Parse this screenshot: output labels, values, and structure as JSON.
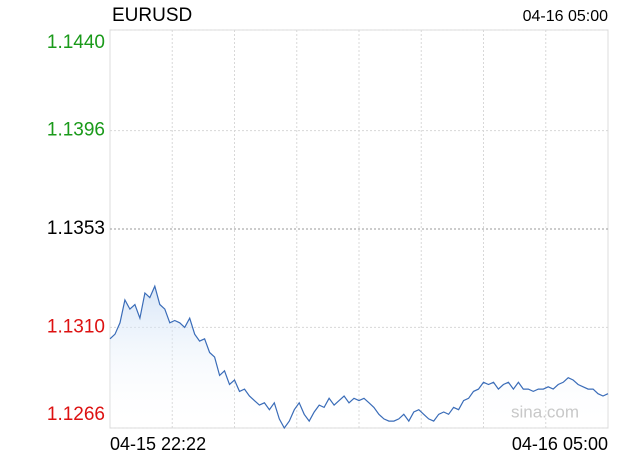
{
  "chart_data": {
    "type": "line",
    "title": "EURUSD",
    "time": "04-16 05:00",
    "watermark": "sina.com",
    "categories": [
      "04-15 22:22",
      null,
      null,
      null,
      null,
      null,
      null,
      null,
      null,
      null,
      null,
      null,
      null,
      null,
      null,
      null,
      null,
      null,
      null,
      null,
      null,
      null,
      null,
      null,
      null,
      null,
      null,
      null,
      null,
      null,
      null,
      null,
      null,
      null,
      null,
      null,
      null,
      null,
      null,
      null,
      null,
      null,
      null,
      null,
      null,
      null,
      null,
      null,
      null,
      null,
      null,
      null,
      null,
      null,
      null,
      null,
      null,
      null,
      null,
      null,
      null,
      null,
      null,
      null,
      null,
      null,
      null,
      null,
      null,
      null,
      null,
      null,
      null,
      null,
      null,
      null,
      null,
      null,
      null,
      null,
      null,
      null,
      null,
      null,
      null,
      null,
      null,
      null,
      null,
      null,
      null,
      null,
      null,
      null,
      null,
      null,
      null,
      null,
      null,
      null,
      "04-16 05:00"
    ],
    "series": [
      {
        "name": "EURUSD",
        "color": "#3a6cb8",
        "values": [
          1.1305,
          1.1307,
          1.1312,
          1.1322,
          1.1318,
          1.132,
          1.1314,
          1.1325,
          1.1323,
          1.1328,
          1.132,
          1.1318,
          1.1312,
          1.1313,
          1.1312,
          1.131,
          1.1314,
          1.1307,
          1.1304,
          1.1305,
          1.1299,
          1.1297,
          1.1289,
          1.1291,
          1.1285,
          1.1287,
          1.1282,
          1.1283,
          1.128,
          1.1278,
          1.1276,
          1.1277,
          1.1274,
          1.1277,
          1.127,
          1.1266,
          1.1269,
          1.1274,
          1.1277,
          1.1272,
          1.1269,
          1.1273,
          1.1276,
          1.1275,
          1.1279,
          1.1276,
          1.1278,
          1.128,
          1.1277,
          1.1279,
          1.1278,
          1.1279,
          1.1277,
          1.1275,
          1.1272,
          1.127,
          1.1269,
          1.1269,
          1.127,
          1.1272,
          1.1269,
          1.1273,
          1.1274,
          1.1272,
          1.127,
          1.1269,
          1.1272,
          1.1273,
          1.1272,
          1.1275,
          1.1274,
          1.1278,
          1.1279,
          1.1282,
          1.1283,
          1.1286,
          1.1285,
          1.1286,
          1.1283,
          1.1285,
          1.1286,
          1.1283,
          1.1286,
          1.1283,
          1.1283,
          1.1282,
          1.1283,
          1.1283,
          1.1284,
          1.1283,
          1.1285,
          1.1286,
          1.1288,
          1.1287,
          1.1285,
          1.1284,
          1.1283,
          1.1283,
          1.1281,
          1.128,
          1.1281
        ]
      }
    ],
    "ylim": [
      1.1266,
      1.144
    ],
    "yticks": [
      {
        "value": 1.144,
        "label": "1.1440",
        "color": "#1a9a1a"
      },
      {
        "value": 1.1396,
        "label": "1.1396",
        "color": "#1a9a1a"
      },
      {
        "value": 1.1353,
        "label": "1.1353",
        "color": "#000000"
      },
      {
        "value": 1.131,
        "label": "1.1310",
        "color": "#dd1111"
      },
      {
        "value": 1.1266,
        "label": "1.1266",
        "color": "#dd1111"
      }
    ],
    "xgrid_divisions": 8,
    "grid": true
  }
}
